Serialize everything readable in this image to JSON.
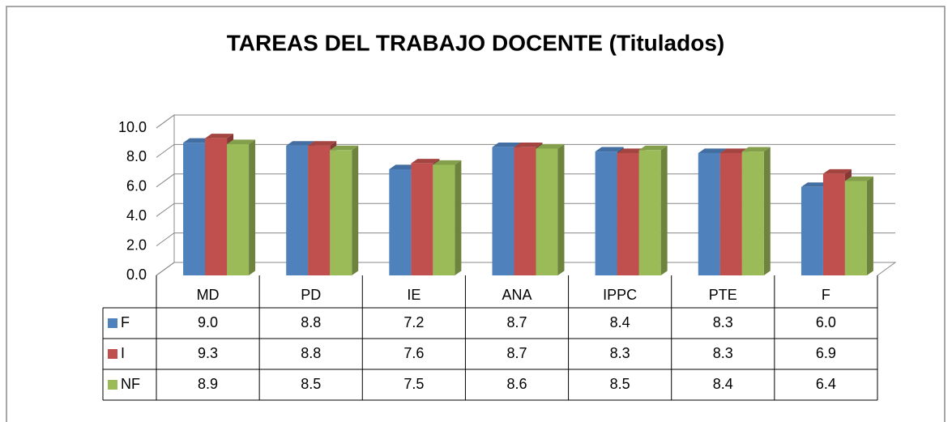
{
  "chart_data": {
    "type": "bar",
    "title": "TAREAS DEL TRABAJO DOCENTE (Titulados)",
    "categories": [
      "MD",
      "PD",
      "IE",
      "ANA",
      "IPPC",
      "PTE",
      "F"
    ],
    "series": [
      {
        "name": "F",
        "color": "#4f81bd",
        "values": [
          9.0,
          8.8,
          7.2,
          8.7,
          8.4,
          8.3,
          6.0
        ],
        "value_labels": [
          "9.0",
          "8.8",
          "7.2",
          "8.7",
          "8.4",
          "8.3",
          "6.0"
        ]
      },
      {
        "name": "I",
        "color": "#c0504d",
        "values": [
          9.3,
          8.8,
          7.6,
          8.7,
          8.3,
          8.3,
          6.9
        ],
        "value_labels": [
          "9.3",
          "8.8",
          "7.6",
          "8.7",
          "8.3",
          "8.3",
          "6.9"
        ]
      },
      {
        "name": "NF",
        "color": "#9bbb59",
        "values": [
          8.9,
          8.5,
          7.5,
          8.6,
          8.5,
          8.4,
          6.4
        ],
        "value_labels": [
          "8.9",
          "8.5",
          "7.5",
          "8.6",
          "8.5",
          "8.4",
          "6.4"
        ]
      }
    ],
    "ylim": [
      0,
      10
    ],
    "yticks": [
      {
        "value": 0,
        "label": "0.0"
      },
      {
        "value": 2,
        "label": "2.0"
      },
      {
        "value": 4,
        "label": "4.0"
      },
      {
        "value": 6,
        "label": "6.0"
      },
      {
        "value": 8,
        "label": "8.0"
      },
      {
        "value": 10,
        "label": "10.0"
      }
    ],
    "grid": true
  }
}
